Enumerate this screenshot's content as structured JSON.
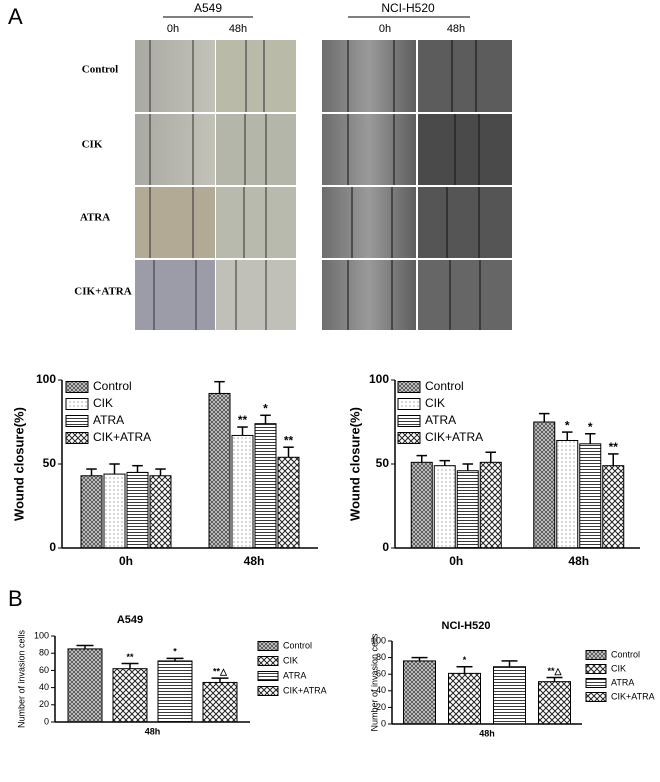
{
  "panel_a": {
    "label": "A",
    "groups": [
      {
        "name": "A549",
        "times": [
          "0h",
          "48h"
        ]
      },
      {
        "name": "NCI-H520",
        "times": [
          "0h",
          "48h"
        ]
      }
    ],
    "rows": [
      "Control",
      "CIK",
      "ATRA",
      "CIK+ATRA"
    ]
  },
  "panel_b": {
    "label": "B"
  },
  "chart_data": [
    {
      "type": "bar",
      "ylabel": "Wound closure(%)",
      "categories": [
        "0h",
        "48h"
      ],
      "ylim": [
        0,
        100
      ],
      "yticks": [
        0,
        50,
        100
      ],
      "legend": "upper left",
      "series": [
        {
          "name": "Control",
          "pattern": "crosshatch",
          "values": [
            43,
            92
          ],
          "errors": [
            4,
            7
          ],
          "marks": [
            null,
            null
          ]
        },
        {
          "name": "CIK",
          "pattern": "dots",
          "values": [
            44,
            67
          ],
          "errors": [
            6,
            5
          ],
          "marks": [
            null,
            "**"
          ]
        },
        {
          "name": "ATRA",
          "pattern": "hlines",
          "values": [
            45,
            74
          ],
          "errors": [
            4,
            5
          ],
          "marks": [
            null,
            "*"
          ]
        },
        {
          "name": "CIK+ATRA",
          "pattern": "checker",
          "values": [
            43,
            54
          ],
          "errors": [
            4,
            6
          ],
          "marks": [
            null,
            "**"
          ]
        }
      ]
    },
    {
      "type": "bar",
      "ylabel": "Wound closure(%)",
      "categories": [
        "0h",
        "48h"
      ],
      "ylim": [
        0,
        100
      ],
      "yticks": [
        0,
        50,
        100
      ],
      "legend": "upper left",
      "series": [
        {
          "name": "Control",
          "pattern": "crosshatch",
          "values": [
            51,
            75
          ],
          "errors": [
            4,
            5
          ],
          "marks": [
            null,
            null
          ]
        },
        {
          "name": "CIK",
          "pattern": "dots",
          "values": [
            49,
            64
          ],
          "errors": [
            3,
            5
          ],
          "marks": [
            null,
            "*"
          ]
        },
        {
          "name": "ATRA",
          "pattern": "hlines",
          "values": [
            46,
            62
          ],
          "errors": [
            4,
            6
          ],
          "marks": [
            null,
            "*"
          ]
        },
        {
          "name": "CIK+ATRA",
          "pattern": "checker",
          "values": [
            51,
            49
          ],
          "errors": [
            6,
            7
          ],
          "marks": [
            null,
            "**"
          ]
        }
      ]
    },
    {
      "type": "bar",
      "title": "A549",
      "ylabel": "Number of invasion cells",
      "categories": [
        "48h"
      ],
      "ylim": [
        0,
        100
      ],
      "yticks": [
        0,
        20,
        40,
        60,
        80,
        100
      ],
      "legend": "right",
      "series": [
        {
          "name": "Control",
          "pattern": "crosshatch",
          "values": [
            85
          ],
          "errors": [
            4
          ],
          "marks": [
            null
          ]
        },
        {
          "name": "CIK",
          "pattern": "checker",
          "values": [
            62
          ],
          "errors": [
            6
          ],
          "marks": [
            "**"
          ]
        },
        {
          "name": "ATRA",
          "pattern": "hlines",
          "values": [
            71
          ],
          "errors": [
            3
          ],
          "marks": [
            "*"
          ]
        },
        {
          "name": "CIK+ATRA",
          "pattern": "checker",
          "values": [
            46
          ],
          "errors": [
            5
          ],
          "marks": [
            "**△"
          ]
        }
      ]
    },
    {
      "type": "bar",
      "title": "NCI-H520",
      "ylabel": "Number of invasion cells",
      "categories": [
        "48h"
      ],
      "ylim": [
        0,
        100
      ],
      "yticks": [
        0,
        20,
        40,
        60,
        80,
        100
      ],
      "legend": "right",
      "series": [
        {
          "name": "Control",
          "pattern": "crosshatch",
          "values": [
            76
          ],
          "errors": [
            4
          ],
          "marks": [
            null
          ]
        },
        {
          "name": "CIK",
          "pattern": "checker",
          "values": [
            61
          ],
          "errors": [
            8
          ],
          "marks": [
            "*"
          ]
        },
        {
          "name": "ATRA",
          "pattern": "hlines",
          "values": [
            69
          ],
          "errors": [
            7
          ],
          "marks": [
            null
          ]
        },
        {
          "name": "CIK+ATRA",
          "pattern": "checker",
          "values": [
            51
          ],
          "errors": [
            5
          ],
          "marks": [
            "**△"
          ]
        }
      ]
    }
  ]
}
